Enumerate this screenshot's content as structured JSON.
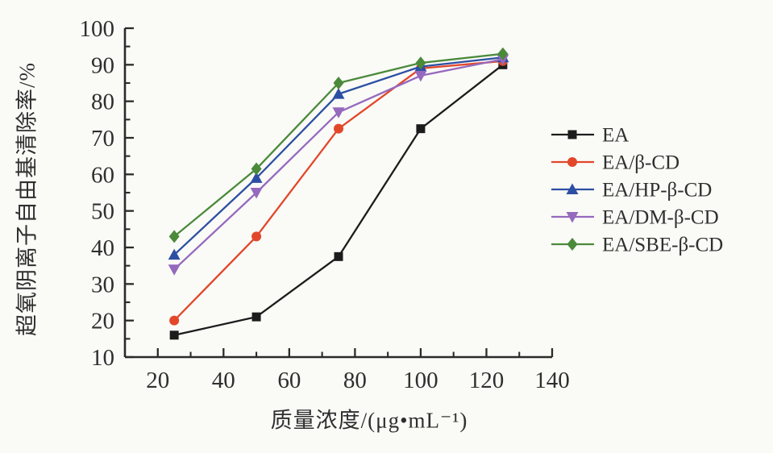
{
  "figure": {
    "background_color": "#fafaf7",
    "axis_color": "#2b2b2b",
    "text_color": "#2f2f2f"
  },
  "chart_data": {
    "type": "line",
    "title": "",
    "xlabel": "质量浓度/(μg•mL⁻¹)",
    "ylabel": "超氧阴离子自由基清除率/%",
    "x": [
      25,
      50,
      75,
      100,
      125
    ],
    "xlim": [
      10,
      140
    ],
    "ylim": [
      10,
      100
    ],
    "x_ticks": [
      20,
      40,
      60,
      80,
      100,
      120,
      140
    ],
    "y_ticks": [
      10,
      20,
      30,
      40,
      50,
      60,
      70,
      80,
      90,
      100
    ],
    "x_minor_step": 10,
    "y_minor_step": 5,
    "grid": false,
    "legend_position": "right",
    "series": [
      {
        "name": "EA",
        "color": "#1c1c1c",
        "marker": "square",
        "values": [
          16,
          21,
          37.5,
          72.5,
          90
        ]
      },
      {
        "name": "EA/β-CD",
        "color": "#e2472a",
        "marker": "circle",
        "values": [
          20,
          43,
          72.5,
          89,
          91
        ]
      },
      {
        "name": "EA/HP-β-CD",
        "color": "#2c4fa3",
        "marker": "triangle-up",
        "values": [
          38,
          59,
          82,
          89.5,
          92
        ]
      },
      {
        "name": "EA/DM-β-CD",
        "color": "#9569bd",
        "marker": "triangle-down",
        "values": [
          34,
          55,
          77,
          87,
          91.5
        ]
      },
      {
        "name": "EA/SBE-β-CD",
        "color": "#4a8a3a",
        "marker": "diamond",
        "values": [
          43,
          61.5,
          85,
          90.5,
          93
        ]
      }
    ]
  }
}
